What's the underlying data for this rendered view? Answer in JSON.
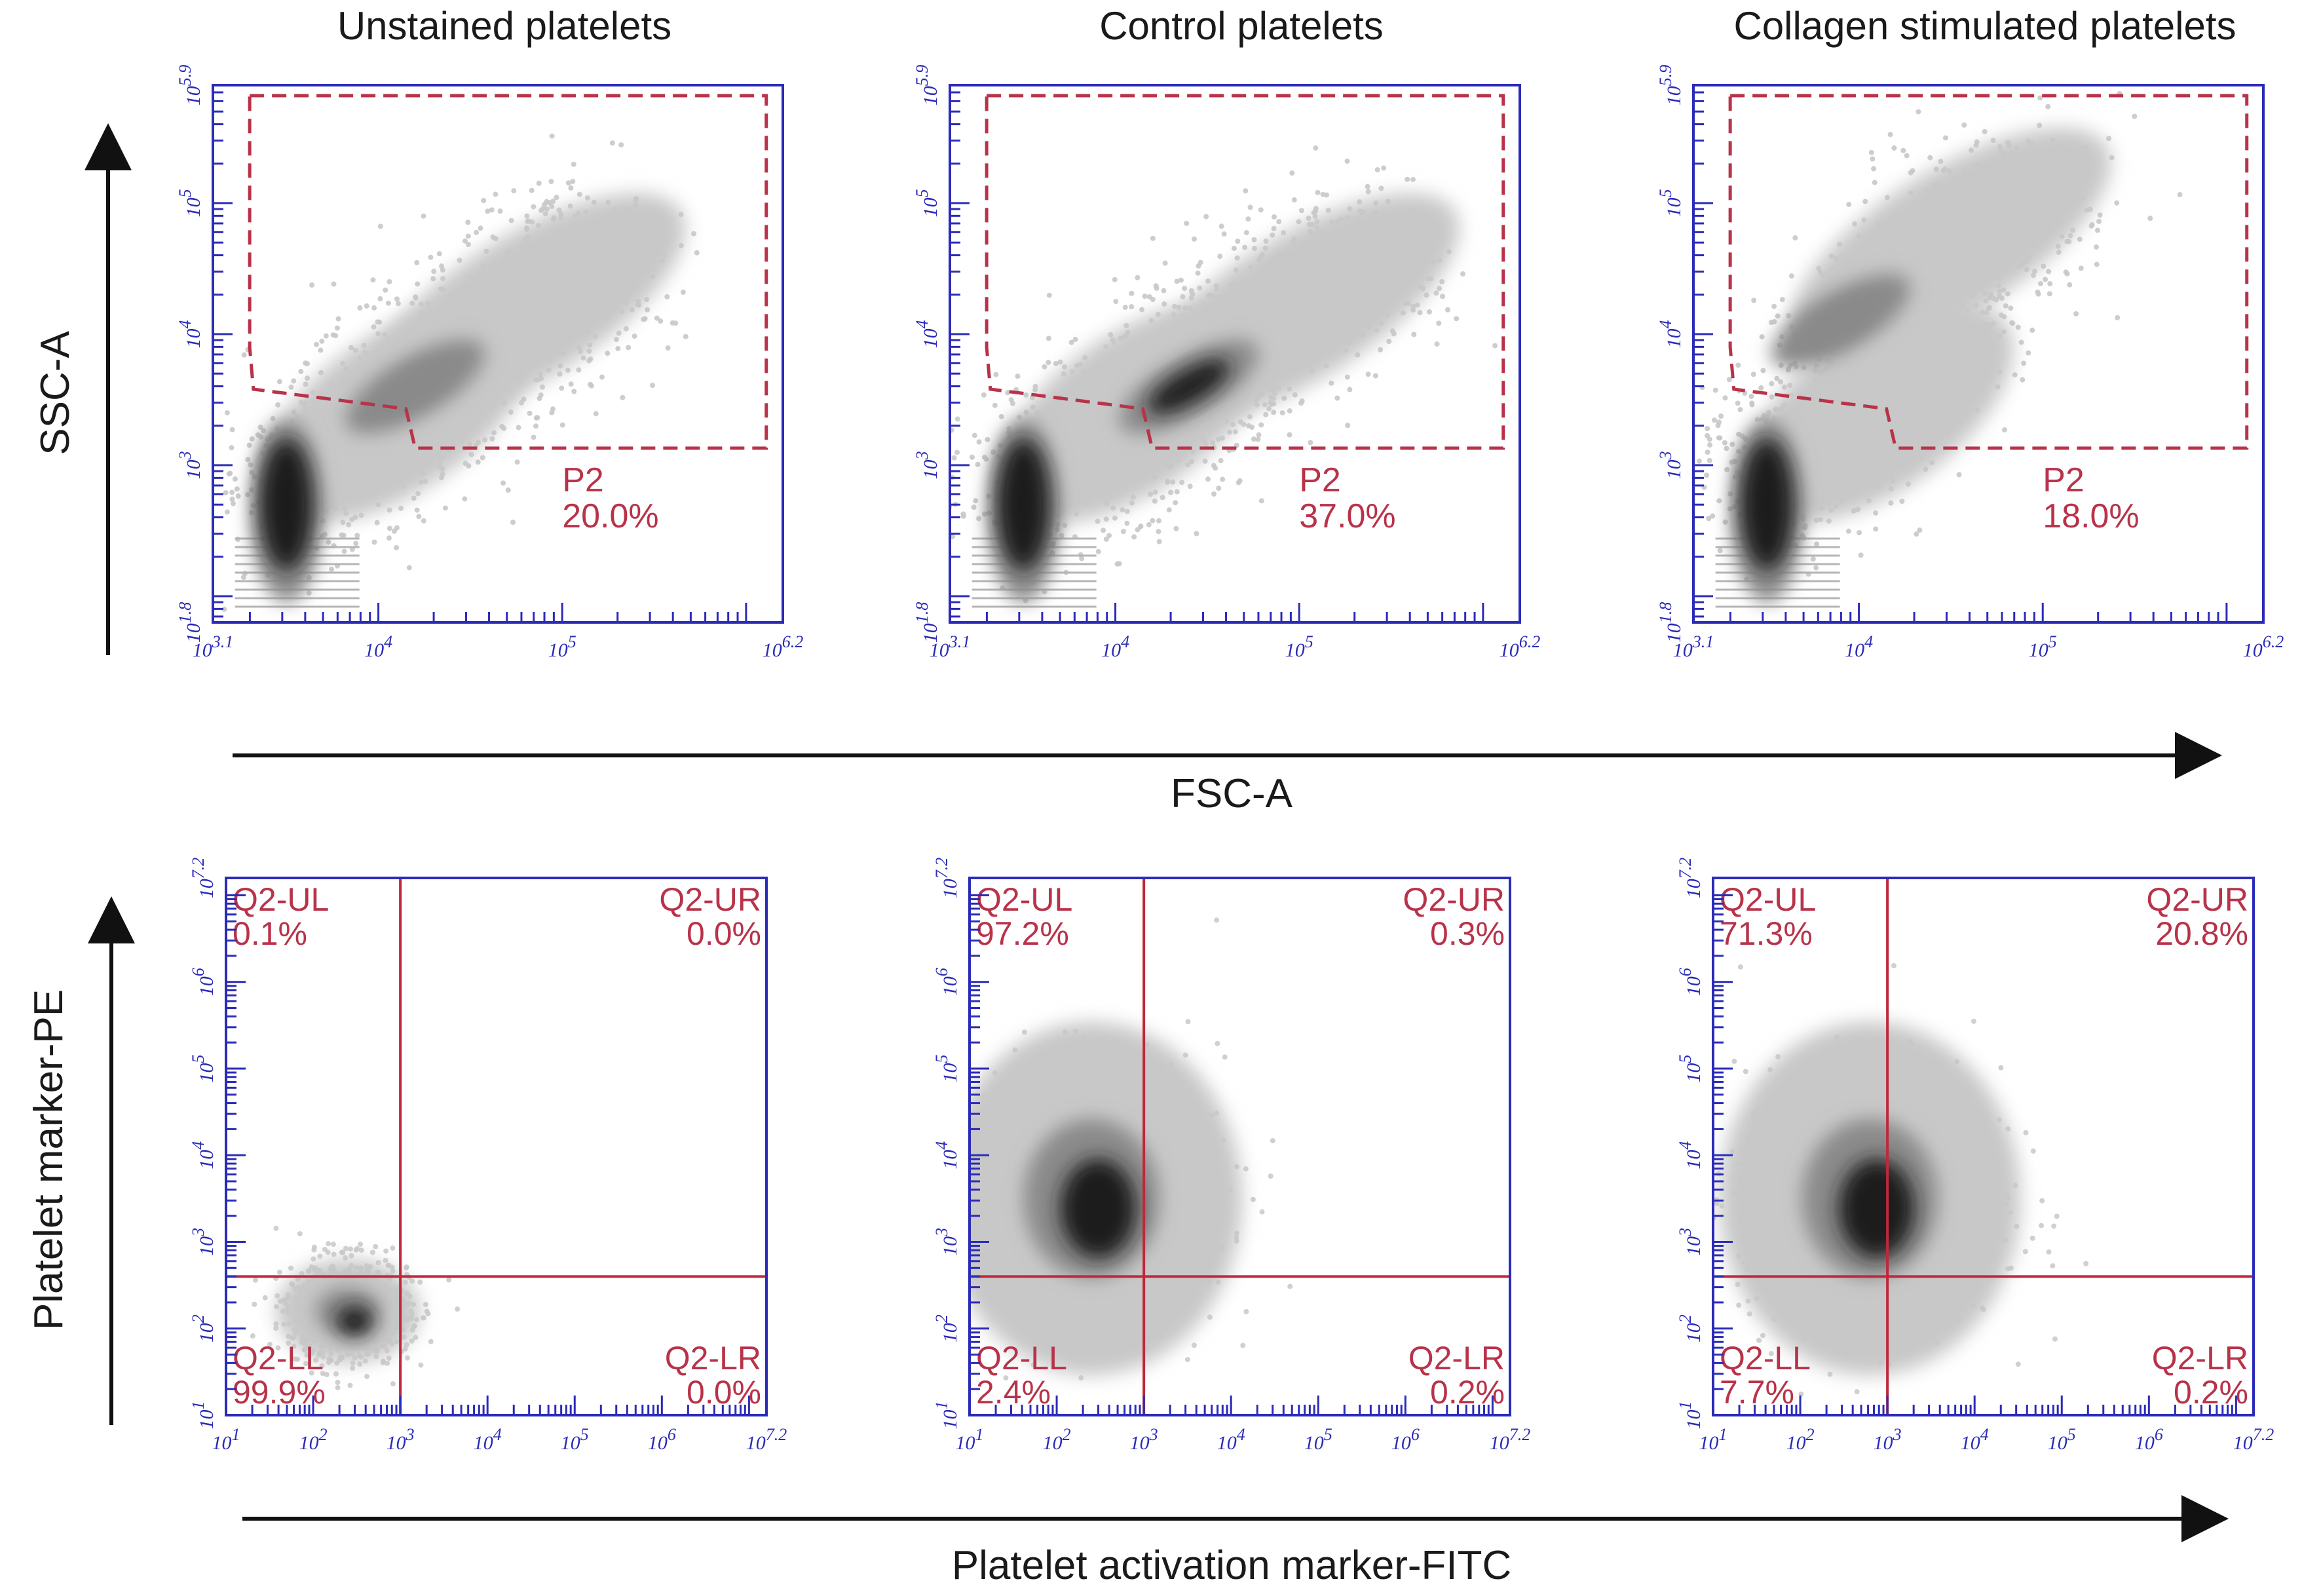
{
  "figure": {
    "top_axis_x_label": "FSC-A",
    "top_axis_y_label": "SSC-A",
    "bottom_axis_x_label": "Platelet activation marker-FITC",
    "bottom_axis_y_label": "Platelet marker-PE"
  },
  "colors": {
    "axis": "#2b2bb8",
    "gate": "#b8334a",
    "quadrant_line": "#c0273a",
    "density_low": "#c8c8c8",
    "density_mid": "#8a8a8a",
    "density_high": "#1e1e1e"
  },
  "chart_data": [
    {
      "type": "scatter",
      "title": "Unstained platelets",
      "xlabel": "FSC-A",
      "ylabel": "SSC-A",
      "xscale": "log",
      "yscale": "log",
      "xlim_log10": [
        3.1,
        6.2
      ],
      "ylim_log10": [
        1.8,
        5.9
      ],
      "x_ticks": [
        "10^3.1",
        "10^4",
        "10^5",
        "10^6.2"
      ],
      "y_ticks": [
        "10^1.8",
        "10^3",
        "10^4",
        "10^5",
        "10^5.9"
      ],
      "gates": [
        {
          "name": "P2",
          "percent": "20.0%"
        }
      ],
      "density_clusters": [
        {
          "x_log10": 3.5,
          "y_log10": 2.7,
          "spread": "high",
          "intensity": "high"
        },
        {
          "x_log10": 4.2,
          "y_log10": 3.6,
          "spread": "mid",
          "intensity": "mid"
        }
      ]
    },
    {
      "type": "scatter",
      "title": "Control platelets",
      "xlabel": "FSC-A",
      "ylabel": "SSC-A",
      "xscale": "log",
      "yscale": "log",
      "xlim_log10": [
        3.1,
        6.2
      ],
      "ylim_log10": [
        1.8,
        5.9
      ],
      "x_ticks": [
        "10^3.1",
        "10^4",
        "10^5",
        "10^6.2"
      ],
      "y_ticks": [
        "10^1.8",
        "10^3",
        "10^4",
        "10^5",
        "10^5.9"
      ],
      "gates": [
        {
          "name": "P2",
          "percent": "37.0%"
        }
      ],
      "density_clusters": [
        {
          "x_log10": 3.5,
          "y_log10": 2.7,
          "spread": "high",
          "intensity": "high"
        },
        {
          "x_log10": 4.4,
          "y_log10": 3.6,
          "spread": "mid",
          "intensity": "high"
        }
      ]
    },
    {
      "type": "scatter",
      "title": "Collagen stimulated platelets",
      "xlabel": "FSC-A",
      "ylabel": "SSC-A",
      "xscale": "log",
      "yscale": "log",
      "xlim_log10": [
        3.1,
        6.2
      ],
      "ylim_log10": [
        1.8,
        5.9
      ],
      "x_ticks": [
        "10^3.1",
        "10^4",
        "10^5",
        "10^6.2"
      ],
      "y_ticks": [
        "10^1.8",
        "10^3",
        "10^4",
        "10^5",
        "10^5.9"
      ],
      "gates": [
        {
          "name": "P2",
          "percent": "18.0%"
        }
      ],
      "density_clusters": [
        {
          "x_log10": 3.5,
          "y_log10": 2.7,
          "spread": "high",
          "intensity": "high"
        },
        {
          "x_log10": 3.9,
          "y_log10": 4.1,
          "spread": "mid",
          "intensity": "mid"
        }
      ]
    },
    {
      "type": "scatter",
      "title": "",
      "xlabel": "Platelet activation marker-FITC",
      "ylabel": "Platelet marker-PE",
      "xscale": "log",
      "yscale": "log",
      "xlim_log10": [
        1,
        7.2
      ],
      "ylim_log10": [
        1,
        7.2
      ],
      "x_ticks": [
        "10^1",
        "10^2",
        "10^3",
        "10^4",
        "10^5",
        "10^6",
        "10^7.2"
      ],
      "y_ticks": [
        "10^1",
        "10^2",
        "10^3",
        "10^4",
        "10^5",
        "10^6",
        "10^7.2"
      ],
      "quadrants": {
        "x_split_log10": 3.0,
        "y_split_log10": 2.6
      },
      "quadrant_values": [
        {
          "name": "Q2-UL",
          "percent": "0.1%"
        },
        {
          "name": "Q2-UR",
          "percent": "0.0%"
        },
        {
          "name": "Q2-LL",
          "percent": "99.9%"
        },
        {
          "name": "Q2-LR",
          "percent": "0.0%"
        }
      ],
      "density_clusters": [
        {
          "x_log10": 2.4,
          "y_log10": 2.2,
          "spread": "low",
          "intensity": "high"
        }
      ]
    },
    {
      "type": "scatter",
      "title": "",
      "xlabel": "Platelet activation marker-FITC",
      "ylabel": "Platelet marker-PE",
      "xscale": "log",
      "yscale": "log",
      "xlim_log10": [
        1,
        7.2
      ],
      "ylim_log10": [
        1,
        7.2
      ],
      "x_ticks": [
        "10^1",
        "10^2",
        "10^3",
        "10^4",
        "10^5",
        "10^6",
        "10^7.2"
      ],
      "y_ticks": [
        "10^1",
        "10^2",
        "10^3",
        "10^4",
        "10^5",
        "10^6",
        "10^7.2"
      ],
      "quadrants": {
        "x_split_log10": 3.0,
        "y_split_log10": 2.6
      },
      "quadrant_values": [
        {
          "name": "Q2-UL",
          "percent": "97.2%"
        },
        {
          "name": "Q2-UR",
          "percent": "0.3%"
        },
        {
          "name": "Q2-LL",
          "percent": "2.4%"
        },
        {
          "name": "Q2-LR",
          "percent": "0.2%"
        }
      ],
      "density_clusters": [
        {
          "x_log10": 2.4,
          "y_log10": 3.5,
          "spread": "mid",
          "intensity": "high"
        }
      ]
    },
    {
      "type": "scatter",
      "title": "",
      "xlabel": "Platelet activation marker-FITC",
      "ylabel": "Platelet marker-PE",
      "xscale": "log",
      "yscale": "log",
      "xlim_log10": [
        1,
        7.2
      ],
      "ylim_log10": [
        1,
        7.2
      ],
      "x_ticks": [
        "10^1",
        "10^2",
        "10^3",
        "10^4",
        "10^5",
        "10^6",
        "10^7.2"
      ],
      "y_ticks": [
        "10^1",
        "10^2",
        "10^3",
        "10^4",
        "10^5",
        "10^6",
        "10^7.2"
      ],
      "quadrants": {
        "x_split_log10": 3.0,
        "y_split_log10": 2.6
      },
      "quadrant_values": [
        {
          "name": "Q2-UL",
          "percent": "71.3%"
        },
        {
          "name": "Q2-UR",
          "percent": "20.8%"
        },
        {
          "name": "Q2-LL",
          "percent": "7.7%"
        },
        {
          "name": "Q2-LR",
          "percent": "0.2%"
        }
      ],
      "density_clusters": [
        {
          "x_log10": 2.8,
          "y_log10": 3.5,
          "spread": "mid",
          "intensity": "high"
        }
      ]
    }
  ]
}
